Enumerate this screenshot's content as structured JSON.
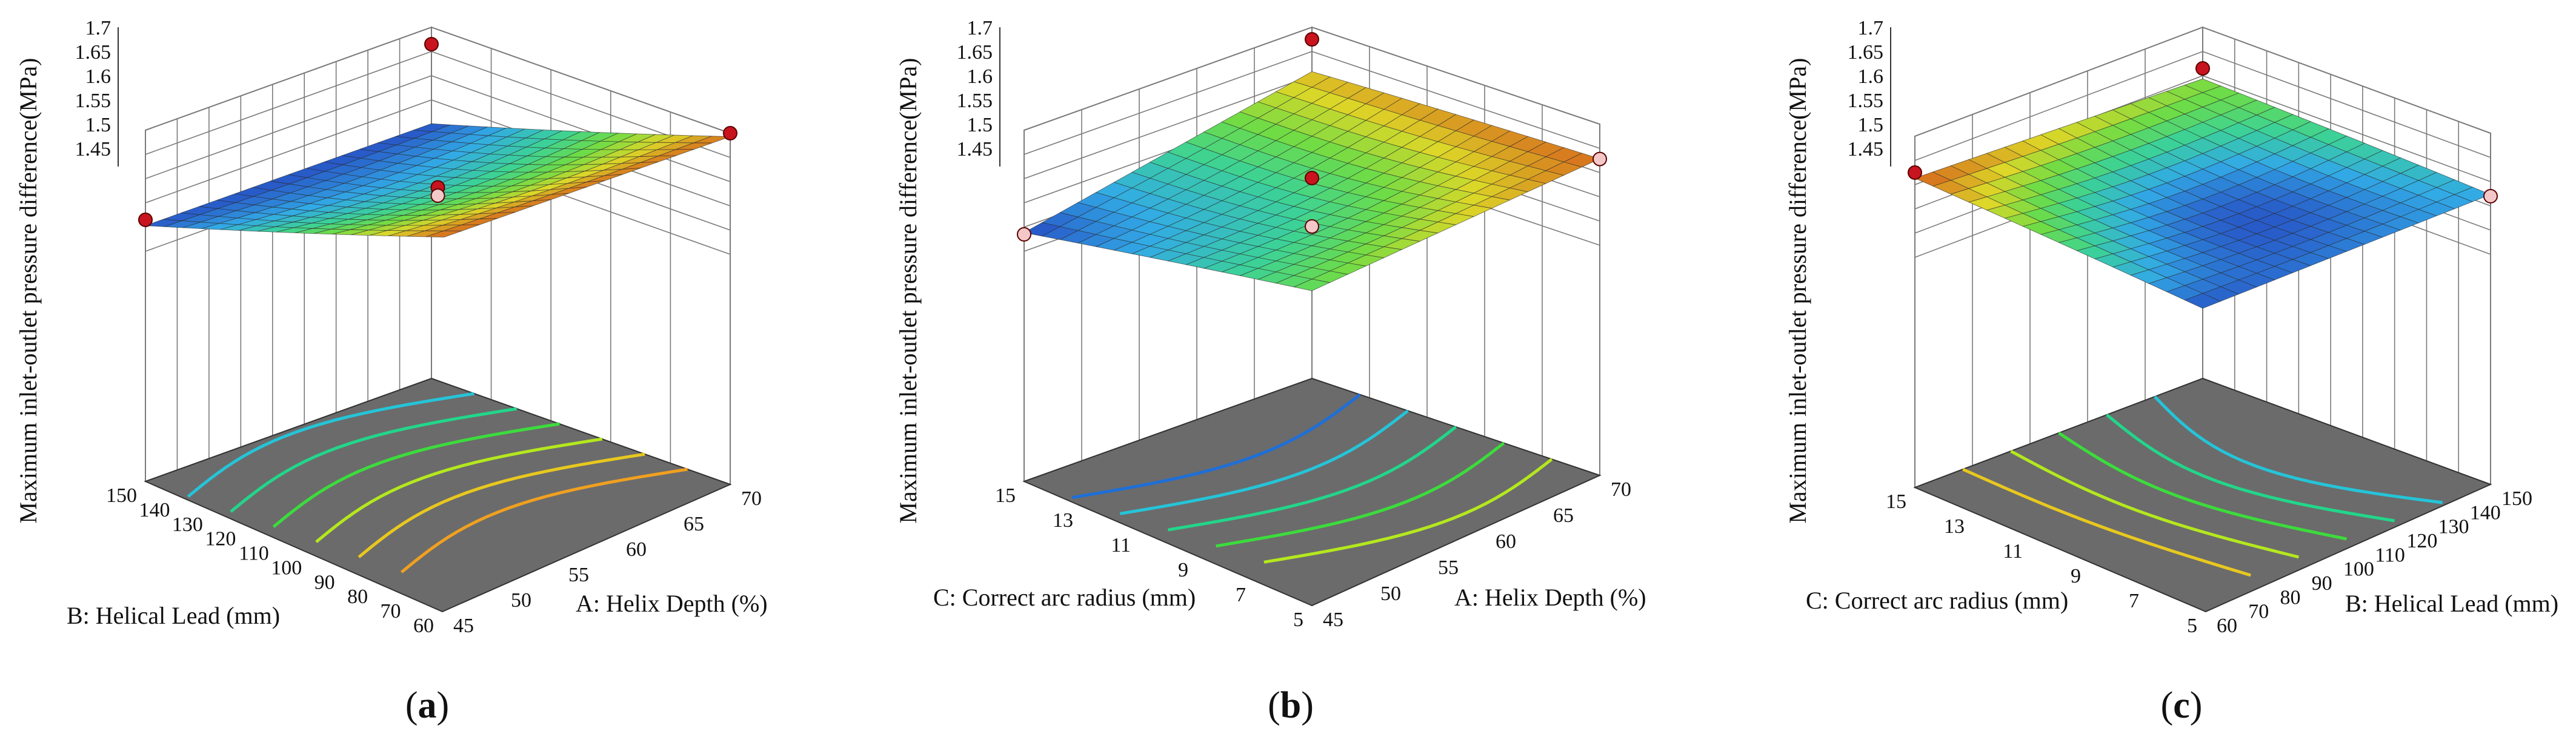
{
  "chart_data": [
    {
      "type": "surface3d",
      "caption": "a",
      "zlabel": "Maximum inlet-outlet pressure difference(MPa)",
      "zticks": [
        "1.45",
        "1.5",
        "1.55",
        "1.6",
        "1.65",
        "1.7"
      ],
      "zlim": [
        1.45,
        1.7
      ],
      "right_axis": {
        "label": "A: Helix Depth (%)",
        "ticks": [
          "45",
          "50",
          "55",
          "60",
          "65",
          "70"
        ],
        "range": [
          45,
          70
        ]
      },
      "left_axis": {
        "label": "B: Helical Lead (mm)",
        "ticks": [
          "150",
          "140",
          "130",
          "120",
          "110",
          "100",
          "90",
          "80",
          "70",
          "60"
        ],
        "range": [
          60,
          150
        ]
      },
      "corner_values": {
        "right0_left0": 1.498,
        "right1_left0": 1.69,
        "right0_left1": 1.5,
        "right1_left1": 1.695
      },
      "design_points": [
        {
          "r": 0.0,
          "l": 1.0,
          "z": 1.515
        },
        {
          "r": 1.0,
          "l": 0.0,
          "z": 1.7
        },
        {
          "r": 0.0,
          "l": 0.0,
          "z": 1.665
        },
        {
          "r": 0.5,
          "l": 0.5,
          "z": 1.585
        },
        {
          "r": 0.5,
          "l": 0.5,
          "z": 1.568
        }
      ],
      "contour_count": 6
    },
    {
      "type": "surface3d",
      "caption": "b",
      "zlabel": "Maximum inlet-outlet pressure difference(MPa)",
      "zticks": [
        "1.45",
        "1.5",
        "1.55",
        "1.6",
        "1.65",
        "1.7"
      ],
      "zlim": [
        1.45,
        1.7
      ],
      "right_axis": {
        "label": "A: Helix Depth (%)",
        "ticks": [
          "45",
          "50",
          "55",
          "60",
          "65",
          "70"
        ],
        "range": [
          45,
          70
        ]
      },
      "left_axis": {
        "label": "C: Correct arc radius (mm)",
        "ticks": [
          "15",
          "13",
          "11",
          "9",
          "7",
          "5"
        ],
        "range": [
          5,
          15
        ]
      },
      "corner_values": {
        "right0_left0": 1.61,
        "right1_left0": 1.63,
        "right0_left1": 1.49,
        "right1_left1": 1.57
      },
      "design_points": [
        {
          "r": 0.0,
          "l": 1.0,
          "z": 1.485
        },
        {
          "r": 1.0,
          "l": 0.0,
          "z": 1.628
        },
        {
          "r": 0.0,
          "l": 0.0,
          "z": 1.675
        },
        {
          "r": 0.5,
          "l": 0.5,
          "z": 1.595
        },
        {
          "r": 0.5,
          "l": 0.5,
          "z": 1.495
        }
      ],
      "contour_count": 5
    },
    {
      "type": "surface3d",
      "caption": "c",
      "zlabel": "Maximum inlet-outlet pressure difference(MPa)",
      "zticks": [
        "1.45",
        "1.5",
        "1.55",
        "1.6",
        "1.65",
        "1.7"
      ],
      "zlim": [
        1.45,
        1.7
      ],
      "right_axis": {
        "label": "B: Helical Lead (mm)",
        "ticks": [
          "60",
          "70",
          "80",
          "90",
          "100",
          "110",
          "120",
          "130",
          "140",
          "150"
        ],
        "range": [
          60,
          150
        ]
      },
      "left_axis": {
        "label": "C: Correct arc radius (mm)",
        "ticks": [
          "15",
          "13",
          "11",
          "9",
          "7",
          "5"
        ],
        "range": [
          5,
          15
        ]
      },
      "corner_values": {
        "right0_left0": 1.595,
        "right1_left0": 1.575,
        "right0_left1": 1.615,
        "right1_left1": 1.565
      },
      "design_points": [
        {
          "r": 0.0,
          "l": 1.0,
          "z": 1.625
        },
        {
          "r": 1.0,
          "l": 0.0,
          "z": 1.57
        },
        {
          "r": 0.0,
          "l": 0.0,
          "z": 1.615
        }
      ],
      "contour_count": 5
    }
  ]
}
